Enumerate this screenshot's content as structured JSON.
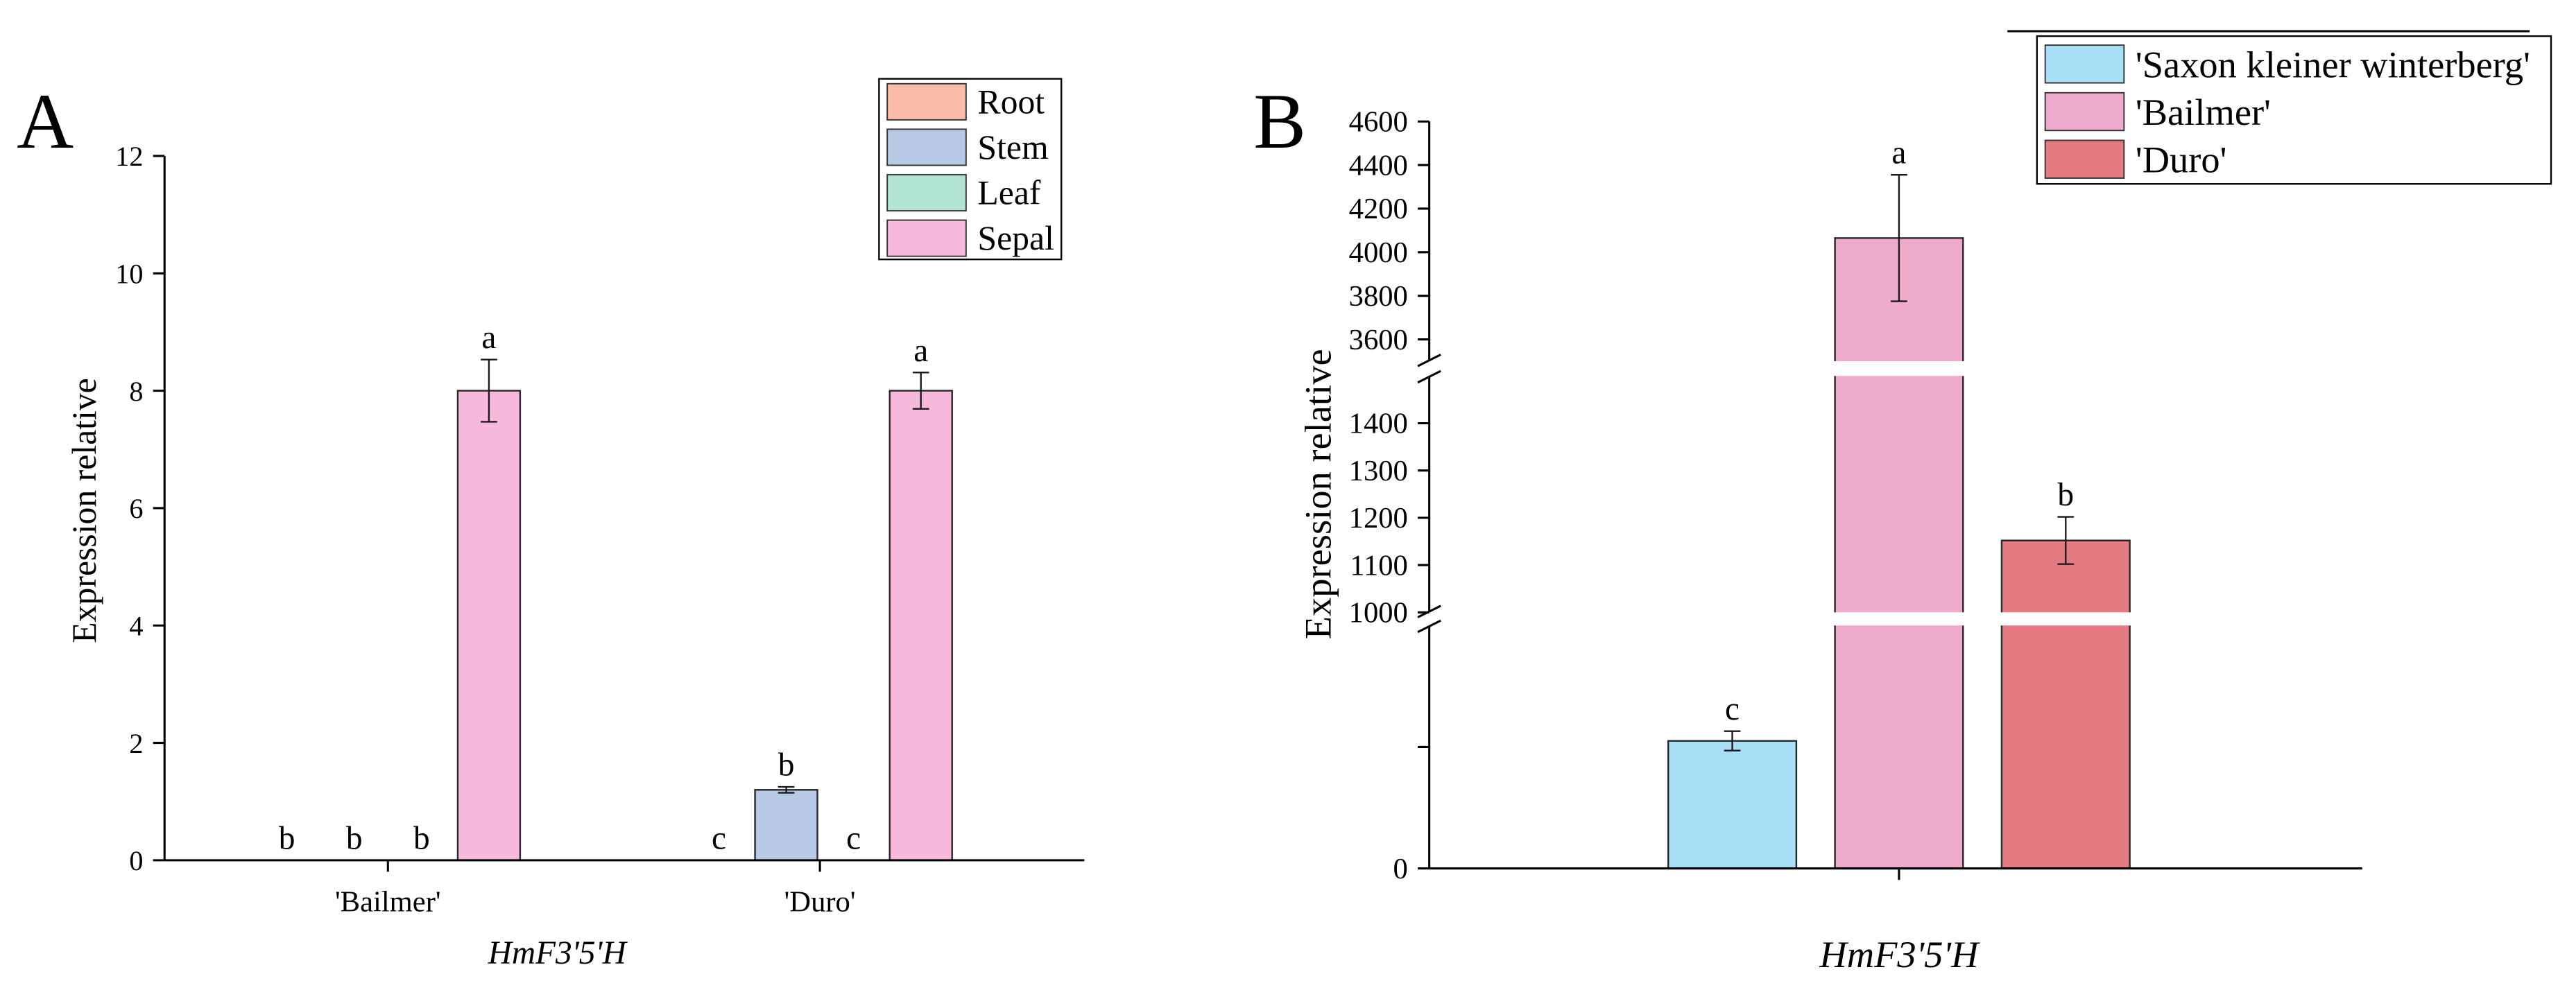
{
  "chart_data": [
    {
      "panel_label": "A",
      "type": "bar",
      "categories": [
        "'Bailmer'",
        "'Duro'"
      ],
      "series": [
        {
          "name": "Root",
          "color": "#fbbcaa",
          "values": [
            0,
            0
          ],
          "errors": [
            0,
            0
          ],
          "letters": [
            "b",
            "c"
          ]
        },
        {
          "name": "Stem",
          "color": "#b7c9e5",
          "values": [
            0,
            1.2
          ],
          "errors": [
            0,
            0.05
          ],
          "letters": [
            "b",
            "b"
          ]
        },
        {
          "name": "Leaf",
          "color": "#b1e5d1",
          "values": [
            0,
            0
          ],
          "errors": [
            0,
            0
          ],
          "letters": [
            "b",
            "c"
          ]
        },
        {
          "name": "Sepal",
          "color": "#f6b8db",
          "values": [
            8,
            8
          ],
          "errors": [
            0.53,
            0.31
          ],
          "letters": [
            "a",
            "a"
          ]
        }
      ],
      "xlabel": "HmF3'5'H",
      "ylabel": "Expression relative",
      "ylim": [
        0,
        12
      ],
      "yticks": [
        0,
        2,
        4,
        6,
        8,
        10,
        12
      ],
      "ytick_labels": [
        "0",
        "2",
        "4",
        "6",
        "8",
        "10",
        "12"
      ],
      "legend": "top-right"
    },
    {
      "panel_label": "B",
      "type": "bar",
      "series": [
        {
          "name": "'Saxon kleiner winterberg'",
          "color": "#a8def6",
          "values": [
            525
          ],
          "errors": [
            40
          ],
          "letters": [
            "c"
          ]
        },
        {
          "name": "'Bailmer'",
          "color": "#eeaacb",
          "values": [
            4065
          ],
          "errors": [
            290
          ],
          "letters": [
            "a"
          ]
        },
        {
          "name": "'Duro'",
          "color": "#e47a82",
          "values": [
            1152
          ],
          "errors": [
            50
          ],
          "letters": [
            "b"
          ]
        }
      ],
      "xlabel": "HmF3'5'H",
      "ylabel": "Expression relative",
      "y_broken_axis": [
        {
          "range": [
            0,
            1000
          ],
          "ticks": [
            0
          ],
          "tick_labels": [
            "0"
          ],
          "unlabeled_ticks": [
            500
          ]
        },
        {
          "range": [
            1000,
            1500
          ],
          "ticks": [
            1000,
            1100,
            1200,
            1300,
            1400
          ],
          "tick_labels": [
            "1000",
            "1100",
            "1200",
            "1300",
            "1400"
          ],
          "unlabeled_ticks": []
        },
        {
          "range": [
            3500,
            4600
          ],
          "ticks": [
            3600,
            3800,
            4000,
            4200,
            4400,
            4600
          ],
          "tick_labels": [
            "3600",
            "3800",
            "4000",
            "4200",
            "4400",
            "4600"
          ],
          "unlabeled_ticks": []
        }
      ],
      "legend": "top-right"
    }
  ]
}
